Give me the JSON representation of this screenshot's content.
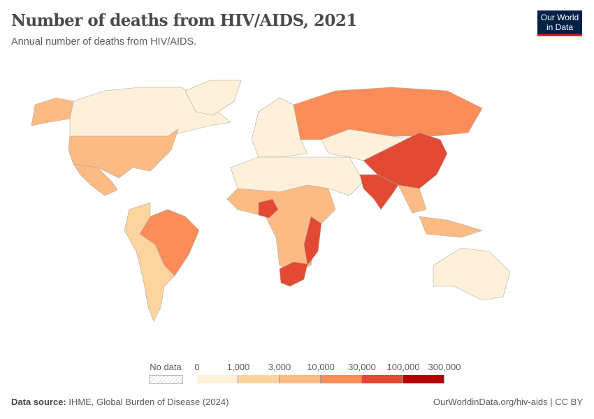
{
  "header": {
    "title": "Number of deaths from HIV/AIDS, 2021",
    "subtitle": "Annual number of deaths from HIV/AIDS.",
    "logo": "Our World in Data"
  },
  "colors": {
    "c0": "#fef0d9",
    "c1": "#fdd49e",
    "c2": "#fdbb84",
    "c3": "#fc8d59",
    "c4": "#e34a33",
    "c5": "#b30000",
    "border": "#aaa"
  },
  "legend": {
    "no_data_label": "No data",
    "thresholds": [
      "0",
      "1,000",
      "3,000",
      "10,000",
      "30,000",
      "100,000",
      "300,000"
    ],
    "bin_colors": [
      "#fef0d9",
      "#fdd49e",
      "#fdbb84",
      "#fc8d59",
      "#e34a33",
      "#b30000"
    ]
  },
  "map_data": [
    {
      "region": "Canada",
      "bin": 0
    },
    {
      "region": "Greenland",
      "bin": 0
    },
    {
      "region": "United States",
      "bin": 2
    },
    {
      "region": "Mexico",
      "bin": 2
    },
    {
      "region": "Brazil",
      "bin": 3
    },
    {
      "region": "South America other",
      "bin": 1
    },
    {
      "region": "Europe",
      "bin": 0
    },
    {
      "region": "Russia",
      "bin": 3
    },
    {
      "region": "China",
      "bin": 4
    },
    {
      "region": "India",
      "bin": 4
    },
    {
      "region": "Nigeria",
      "bin": 4
    },
    {
      "region": "South Africa",
      "bin": 4
    },
    {
      "region": "Mozambique",
      "bin": 4
    },
    {
      "region": "Africa other",
      "bin": 2
    },
    {
      "region": "North Africa & Middle East",
      "bin": 0
    },
    {
      "region": "Central Asia",
      "bin": 0
    },
    {
      "region": "Southeast Asia",
      "bin": 2
    },
    {
      "region": "Australia",
      "bin": 0
    }
  ],
  "footer": {
    "source_label": "Data source:",
    "source": "IHME, Global Burden of Disease (2024)",
    "url": "OurWorldinData.org/hiv-aids | CC BY"
  }
}
